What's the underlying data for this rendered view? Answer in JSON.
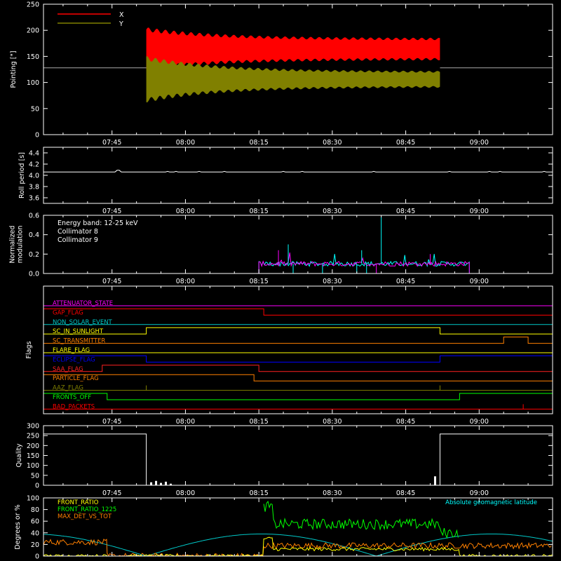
{
  "chart_data": [
    {
      "type": "line",
      "ylabel": "Pointing [\"]",
      "ylim": [
        0,
        250
      ],
      "yticks": [
        0,
        50,
        100,
        150,
        200,
        250
      ],
      "xlabels": [
        "07:45",
        "08:00",
        "08:15",
        "08:30",
        "08:45",
        "09:00"
      ],
      "legend_placement": "top-left",
      "series": [
        {
          "name": "X",
          "color": "#ff0000",
          "mean": 128,
          "amp_start": 75,
          "amp_end": 38,
          "offset": 36,
          "oscillation_period_s": 4.06
        },
        {
          "name": "Y",
          "color": "#808000",
          "mean": 128,
          "amp_start": 80,
          "amp_end": 28,
          "offset": -22,
          "oscillation_period_s": 4.06
        }
      ],
      "baseline": 128,
      "active_range": [
        "07:52",
        "08:52"
      ]
    },
    {
      "type": "line",
      "ylabel": "Roll period [s]",
      "ylim": [
        3.5,
        4.5
      ],
      "yticks": [
        3.6,
        3.8,
        4.0,
        4.2,
        4.4
      ],
      "xlabels": [
        "07:45",
        "08:00",
        "08:15",
        "08:30",
        "08:45",
        "09:00"
      ],
      "series": [
        {
          "name": "",
          "color": "#ffffff",
          "value": 4.06
        }
      ]
    },
    {
      "type": "line",
      "ylabel_lines": [
        "Normalized",
        "modulation"
      ],
      "ylim": [
        0,
        0.6
      ],
      "yticks": [
        0.0,
        0.2,
        0.4,
        0.6
      ],
      "xlabels": [
        "07:45",
        "08:00",
        "08:15",
        "08:30",
        "08:45",
        "09:00"
      ],
      "annotation": "Energy band: 12-25 keV",
      "active_range": [
        "08:15",
        "08:58"
      ],
      "active_level": 0.1,
      "series": [
        {
          "name": "Collimator 8",
          "color": "#00ffff"
        },
        {
          "name": "Collimator 9",
          "color": "#ff00ff"
        }
      ],
      "peaks": [
        {
          "time": "08:40",
          "value": 0.58,
          "color": "#00ffff"
        },
        {
          "time": "08:21",
          "value": 0.3,
          "color": "#00ffff"
        },
        {
          "time": "08:19",
          "value": 0.24,
          "color": "#ff00ff"
        },
        {
          "time": "08:36",
          "value": 0.24,
          "color": "#00ffff"
        },
        {
          "time": "08:50",
          "value": 0.2,
          "color": "#ff00ff"
        }
      ]
    },
    {
      "type": "line",
      "ylabel": "Flags",
      "xlabels": [
        "07:45",
        "08:00",
        "08:15",
        "08:30",
        "08:45",
        "09:00"
      ],
      "flags": [
        {
          "name": "ATTENUATOR_STATE",
          "color": "#ff00ff",
          "segments": [
            [
              "07:31",
              "09:15",
              0
            ]
          ]
        },
        {
          "name": "GAP_FLAG",
          "color": "#ff0000",
          "segments": [
            [
              "07:31",
              "08:16",
              1
            ],
            [
              "08:16",
              "09:15",
              0
            ]
          ]
        },
        {
          "name": "NON_SOLAR_EVENT",
          "color": "#00c8c8",
          "segments": [
            [
              "07:31",
              "09:15",
              0
            ]
          ]
        },
        {
          "name": "SC_IN_SUNLIGHT",
          "color": "#ffff00",
          "segments": [
            [
              "07:31",
              "07:52",
              0
            ],
            [
              "07:52",
              "08:52",
              1
            ],
            [
              "08:52",
              "09:15",
              0
            ]
          ]
        },
        {
          "name": "SC_TRANSMITTER",
          "color": "#ff8000",
          "segments": [
            [
              "07:31",
              "09:05",
              0
            ],
            [
              "09:05",
              "09:10",
              1
            ],
            [
              "09:10",
              "09:15",
              0
            ]
          ]
        },
        {
          "name": "FLARE_FLAG",
          "color": "#ffff00",
          "segments": [
            [
              "07:31",
              "09:15",
              0
            ]
          ]
        },
        {
          "name": "ECLIPSE_FLAG",
          "color": "#0000ff",
          "segments": [
            [
              "07:31",
              "07:52",
              1
            ],
            [
              "07:52",
              "08:52",
              0
            ],
            [
              "08:52",
              "09:15",
              1
            ]
          ]
        },
        {
          "name": "SAA_FLAG",
          "color": "#ff2020",
          "segments": [
            [
              "07:31",
              "07:43",
              0
            ],
            [
              "07:43",
              "08:15",
              1
            ],
            [
              "08:15",
              "09:15",
              0
            ]
          ]
        },
        {
          "name": "PARTICLE_FLAG",
          "color": "#ff8000",
          "segments": [
            [
              "07:31",
              "08:14",
              1
            ],
            [
              "08:14",
              "09:15",
              0
            ]
          ]
        },
        {
          "name": "AAZ_FLAG",
          "color": "#808000",
          "segments": [
            [
              "07:31",
              "09:15",
              0
            ]
          ],
          "spikes": [
            "07:52",
            "08:52"
          ]
        },
        {
          "name": "FRONTS_OFF",
          "color": "#00ff00",
          "segments": [
            [
              "07:31",
              "07:44",
              1
            ],
            [
              "07:44",
              "08:56",
              0
            ],
            [
              "08:56",
              "09:15",
              1
            ]
          ]
        },
        {
          "name": "BAD_PACKETS",
          "color": "#ff0000",
          "segments": [
            [
              "07:31",
              "09:15",
              0
            ]
          ],
          "spikes": [
            "09:09"
          ]
        }
      ]
    },
    {
      "type": "line",
      "ylabel": "Quality",
      "ylim": [
        0,
        300
      ],
      "yticks": [
        0,
        50,
        100,
        150,
        200,
        250,
        300
      ],
      "xlabels": [
        "07:45",
        "08:00",
        "08:15",
        "08:30",
        "08:45",
        "09:00"
      ],
      "series": [
        {
          "name": "",
          "color": "#ffffff"
        }
      ],
      "levels": [
        [
          "07:31",
          "07:52",
          258
        ],
        [
          "07:52",
          "08:52",
          0
        ],
        [
          "08:52",
          "09:15",
          258
        ]
      ],
      "blips": [
        {
          "time": "07:53",
          "value": 15
        },
        {
          "time": "07:54",
          "value": 22
        },
        {
          "time": "07:55",
          "value": 12
        },
        {
          "time": "07:56",
          "value": 18
        },
        {
          "time": "07:57",
          "value": 8
        },
        {
          "time": "08:51",
          "value": 45
        }
      ]
    },
    {
      "type": "line",
      "ylabel": "Degrees or %",
      "ylim": [
        0,
        100
      ],
      "yticks": [
        0,
        20,
        40,
        60,
        80,
        100
      ],
      "xlabels": [
        "07:45",
        "08:00",
        "08:15",
        "08:30",
        "08:45",
        "09:00"
      ],
      "right_annotation": "Absolute geomagnetic latitude",
      "right_annotation_color": "#00ffff",
      "series": [
        {
          "name": "FRONT_RATIO",
          "color": "#ffff00"
        },
        {
          "name": "FRONT_RATIO_1225",
          "color": "#00ff00"
        },
        {
          "name": "MAX_DET_VS_TOT",
          "color": "#ff8000"
        }
      ],
      "latitude_curve": {
        "color": "#00c8c8",
        "max": 38,
        "min": 0
      }
    }
  ]
}
